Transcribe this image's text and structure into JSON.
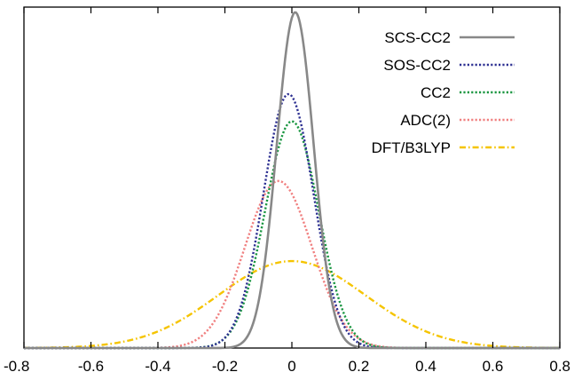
{
  "chart_data": {
    "type": "line",
    "title": "",
    "xlabel": "",
    "ylabel": "",
    "xlim": [
      -0.8,
      0.8
    ],
    "ylim": [
      0,
      1.0
    ],
    "grid": false,
    "legend_position": "top-right",
    "xticks": [
      "-0.8",
      "-0.6",
      "-0.4",
      "-0.2",
      "0",
      "0.2",
      "0.4",
      "0.6",
      "0.8"
    ],
    "series": [
      {
        "name": "SCS-CC2",
        "distribution": "gaussian",
        "mean": 0.01,
        "sigma": 0.055,
        "peak": 0.985,
        "color": "#888888",
        "dash": "solid"
      },
      {
        "name": "SOS-CC2",
        "distribution": "gaussian",
        "mean": -0.01,
        "sigma": 0.075,
        "peak": 0.745,
        "color": "#2e3192",
        "dash": "dotted"
      },
      {
        "name": "CC2",
        "distribution": "gaussian",
        "mean": 0.0,
        "sigma": 0.08,
        "peak": 0.665,
        "color": "#1a9641",
        "dash": "dotted"
      },
      {
        "name": "ADC(2)",
        "distribution": "gaussian",
        "mean": -0.04,
        "sigma": 0.1,
        "peak": 0.49,
        "color": "#f08080",
        "dash": "dotted"
      },
      {
        "name": "DFT/B3LYP",
        "distribution": "gaussian",
        "mean": 0.0,
        "sigma": 0.22,
        "peak": 0.255,
        "color": "#f5c400",
        "dash": "dashdot"
      }
    ]
  }
}
